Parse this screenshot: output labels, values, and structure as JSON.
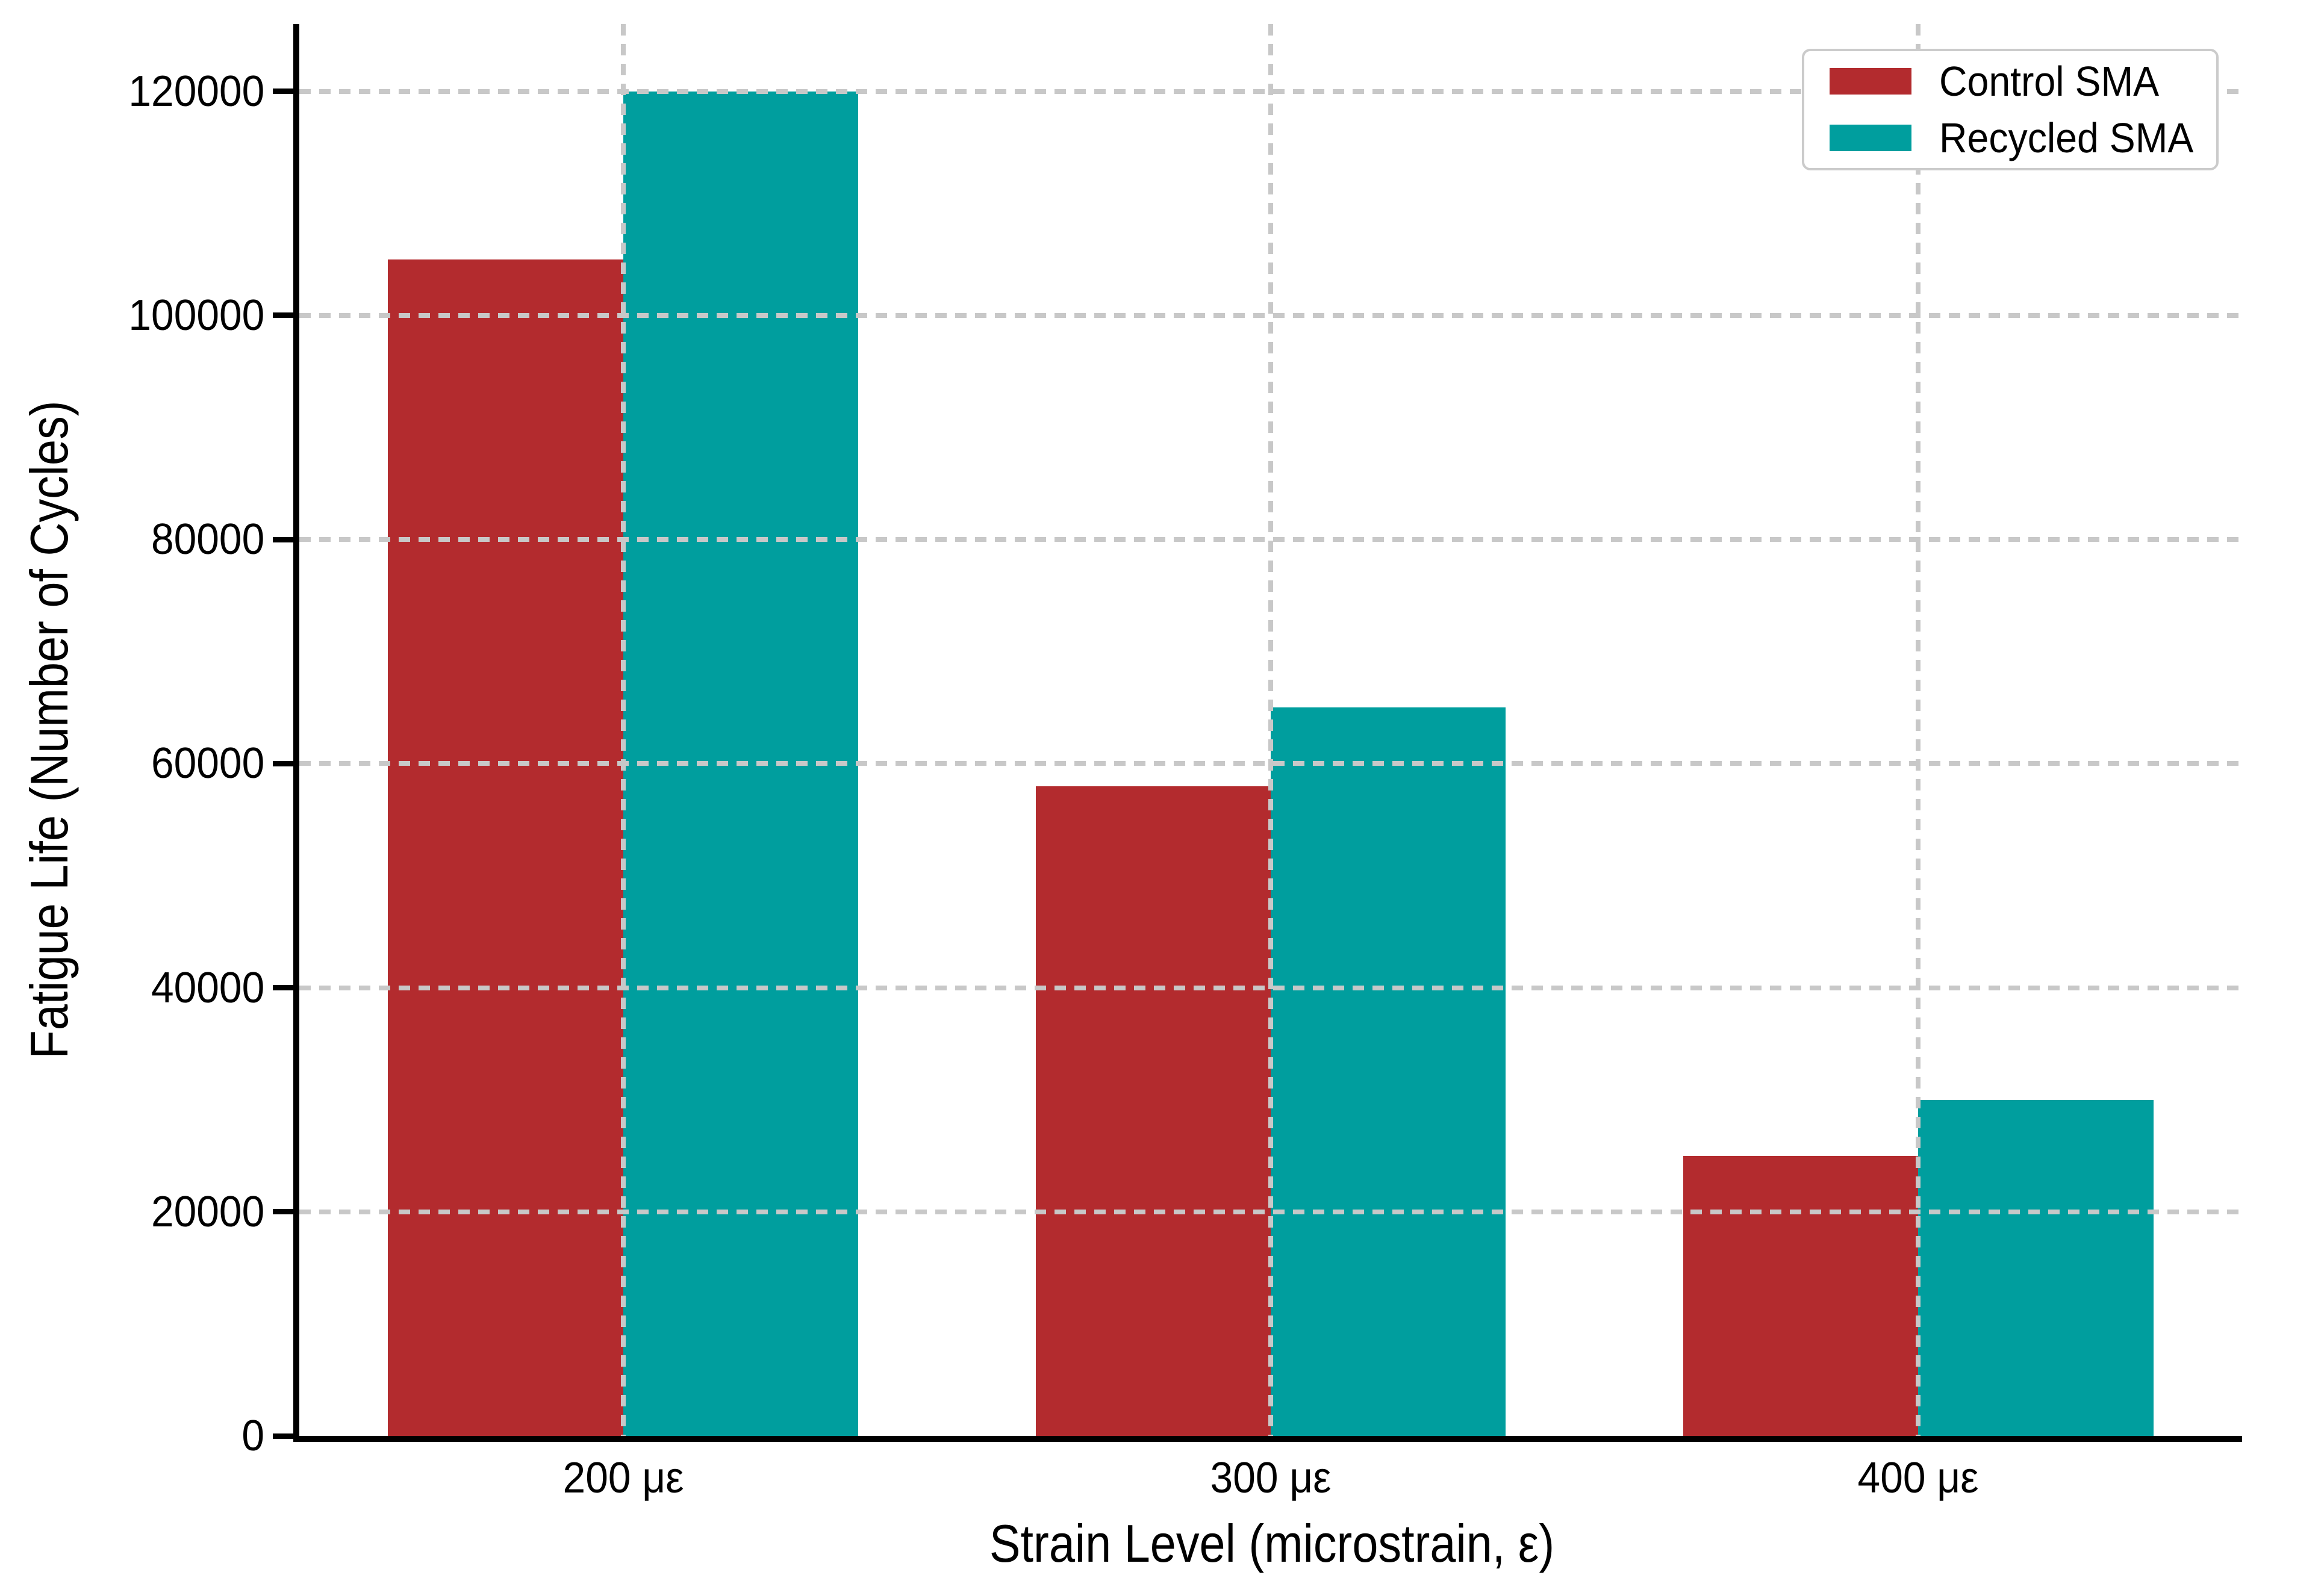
{
  "chart_data": {
    "type": "bar",
    "title": "",
    "categories": [
      "200 με",
      "300 με",
      "400 με"
    ],
    "series": [
      {
        "name": "Control SMA",
        "color": "#B32B2E",
        "values": [
          105000,
          58000,
          25000
        ]
      },
      {
        "name": "Recycled SMA",
        "color": "#009E9E",
        "values": [
          120000,
          65000,
          30000
        ]
      }
    ],
    "xlabel": "Strain Level (microstrain, ε)",
    "ylabel": "Fatigue Life (Number of Cycles)",
    "ylim": [
      0,
      126000
    ],
    "yticks": [
      0,
      20000,
      40000,
      60000,
      80000,
      100000,
      120000
    ],
    "yticklabels": [
      "0",
      "20000",
      "40000",
      "60000",
      "80000",
      "100000",
      "120000"
    ],
    "bar_width_fraction": 0.363,
    "grid": "dashed gridlines, horizontal at yticks and vertical at category centers, drawn above bars",
    "grid_color": "#C8C8C8",
    "axis_color": "#000000",
    "legend_position": "upper right",
    "legend_border_color": "#CBCBCB",
    "background_color": "#ffffff"
  }
}
